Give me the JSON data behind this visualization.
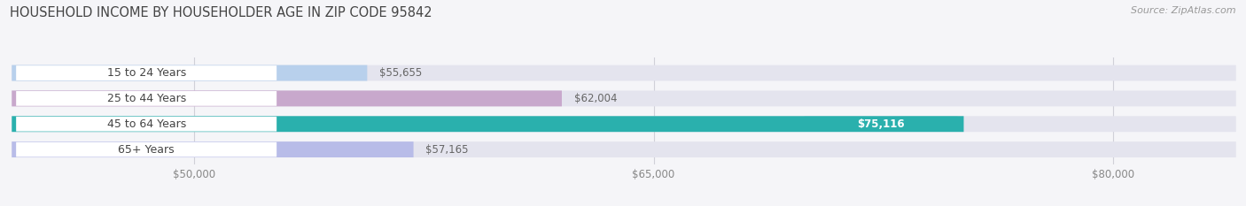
{
  "title": "HOUSEHOLD INCOME BY HOUSEHOLDER AGE IN ZIP CODE 95842",
  "source": "Source: ZipAtlas.com",
  "categories": [
    "15 to 24 Years",
    "25 to 44 Years",
    "45 to 64 Years",
    "65+ Years"
  ],
  "values": [
    55655,
    62004,
    75116,
    57165
  ],
  "bar_colors": [
    "#b8d0ec",
    "#c8a8cc",
    "#2ab0ad",
    "#b8bce8"
  ],
  "value_labels": [
    "$55,655",
    "$62,004",
    "$75,116",
    "$57,165"
  ],
  "xlim_min": 44000,
  "xlim_max": 84000,
  "xticks": [
    50000,
    65000,
    80000
  ],
  "xtick_labels": [
    "$50,000",
    "$65,000",
    "$80,000"
  ],
  "background_color": "#f5f5f8",
  "bar_bg_color": "#e4e4ee",
  "title_fontsize": 10.5,
  "source_fontsize": 8,
  "label_fontsize": 9,
  "value_fontsize": 8.5,
  "tick_fontsize": 8.5
}
